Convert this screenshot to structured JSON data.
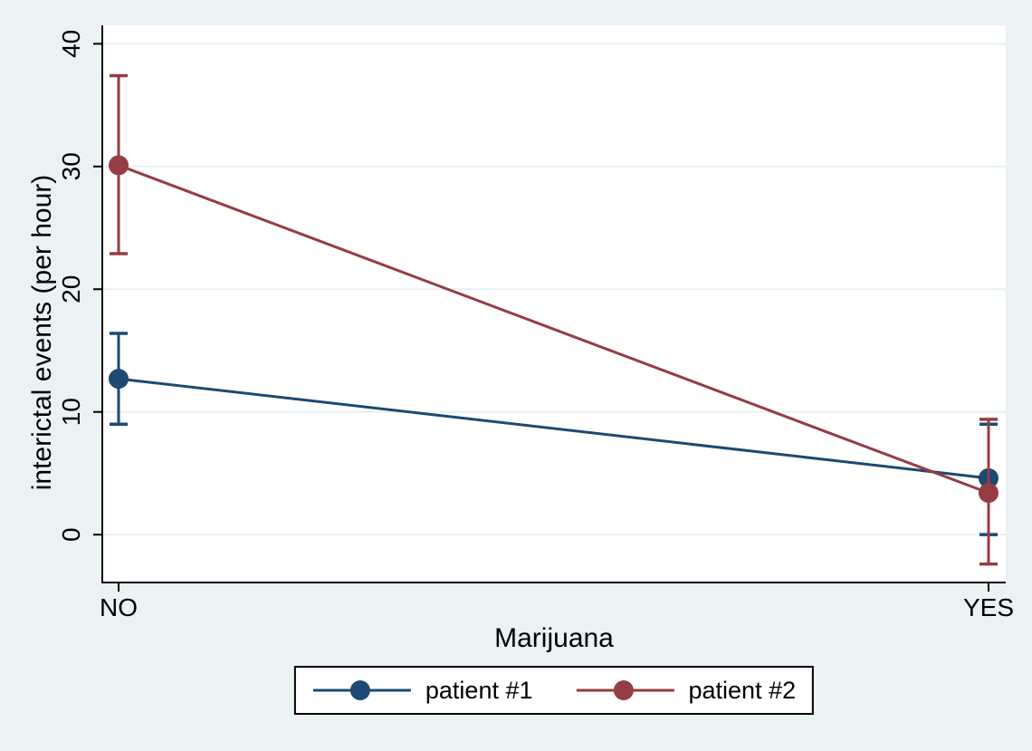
{
  "colors": {
    "background": "#eaf2f3",
    "plot_background": "#ffffff",
    "gridline": "#e8f1f2",
    "axis": "#000000",
    "text": "#000000",
    "legend_background": "#ffffff",
    "legend_border": "#000000"
  },
  "chart_data": {
    "type": "line",
    "title": "",
    "xlabel": "Marijuana",
    "ylabel": "interictal events (per hour)",
    "categories": [
      "NO",
      "YES"
    ],
    "yticks": [
      0,
      10,
      20,
      30,
      40
    ],
    "ylim": [
      -3.9,
      41.5
    ],
    "grid": true,
    "legend_position": "bottom-center",
    "marker": "circle",
    "error_bars": true,
    "series": [
      {
        "name": "patient #1",
        "color": "#1c4a72",
        "values": [
          12.7,
          4.6
        ],
        "ci_low": [
          9.0,
          0.0
        ],
        "ci_high": [
          16.4,
          9.0
        ]
      },
      {
        "name": "patient #2",
        "color": "#953d43",
        "values": [
          30.1,
          3.4
        ],
        "ci_low": [
          22.9,
          -2.4
        ],
        "ci_high": [
          37.4,
          9.4
        ]
      }
    ]
  }
}
